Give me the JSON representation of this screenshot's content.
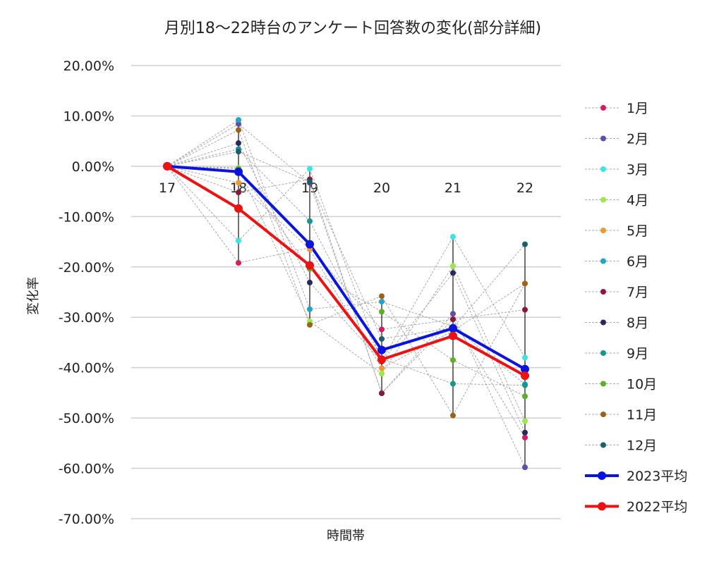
{
  "chart_data": {
    "type": "line",
    "title": "月別18～22時台のアンケート回答数の変化(部分詳細)",
    "xlabel": "時間帯",
    "ylabel": "変化率",
    "categories": [
      "17",
      "18",
      "19",
      "20",
      "21",
      "22"
    ],
    "ylim": [
      -70,
      20
    ],
    "yticks": [
      "20.00%",
      "10.00%",
      "0.00%",
      "-10.00%",
      "-20.00%",
      "-30.00%",
      "-40.00%",
      "-50.00%",
      "-60.00%",
      "-70.00%"
    ],
    "grid": true,
    "legend_position": "right",
    "series": [
      {
        "name": "1月",
        "color": "#d81b60",
        "values": [
          0,
          -19.2,
          -16.2,
          -32.4,
          -30.4,
          -53.9
        ]
      },
      {
        "name": "2月",
        "color": "#5b4fa8",
        "values": [
          0,
          8.4,
          -3.3,
          -45.1,
          -29.3,
          -59.8
        ]
      },
      {
        "name": "3月",
        "color": "#39e6e6",
        "values": [
          0,
          -14.8,
          -0.5,
          -38.7,
          -14.0,
          -38.0
        ]
      },
      {
        "name": "4月",
        "color": "#9be84a",
        "values": [
          0,
          -0.3,
          -30.8,
          -41.2,
          -19.8,
          -50.6
        ]
      },
      {
        "name": "5月",
        "color": "#f29533",
        "values": [
          0,
          -3.3,
          -16.5,
          -40.1,
          -32.7,
          -23.3
        ]
      },
      {
        "name": "6月",
        "color": "#1fa5c8",
        "values": [
          0,
          9.2,
          -28.4,
          -26.9,
          -31.8,
          -43.3
        ]
      },
      {
        "name": "7月",
        "color": "#8a1838",
        "values": [
          0,
          -5.2,
          -2.6,
          -45.1,
          -30.4,
          -28.5
        ]
      },
      {
        "name": "8月",
        "color": "#2a2860",
        "values": [
          0,
          4.6,
          -23.1,
          -38.8,
          -21.2,
          -52.9
        ]
      },
      {
        "name": "9月",
        "color": "#17958f",
        "values": [
          0,
          3.4,
          -10.9,
          -38.2,
          -43.2,
          -43.5
        ]
      },
      {
        "name": "10月",
        "color": "#5fae25",
        "values": [
          0,
          -0.5,
          -20.4,
          -28.9,
          -38.5,
          -45.7
        ]
      },
      {
        "name": "11月",
        "color": "#99631a",
        "values": [
          0,
          7.2,
          -31.5,
          -25.8,
          -49.5,
          -23.3
        ]
      },
      {
        "name": "12月",
        "color": "#1b5f6b",
        "values": [
          0,
          2.9,
          -3.1,
          -34.3,
          -32.1,
          -15.5
        ]
      },
      {
        "name": "2023平均",
        "color": "#0a14e0",
        "values": [
          0,
          -1.1,
          -15.5,
          -36.5,
          -32.2,
          -40.3
        ]
      },
      {
        "name": "2022平均",
        "color": "#ee1111",
        "values": [
          0,
          -8.4,
          -19.7,
          -38.4,
          -33.7,
          -41.6
        ]
      }
    ]
  }
}
